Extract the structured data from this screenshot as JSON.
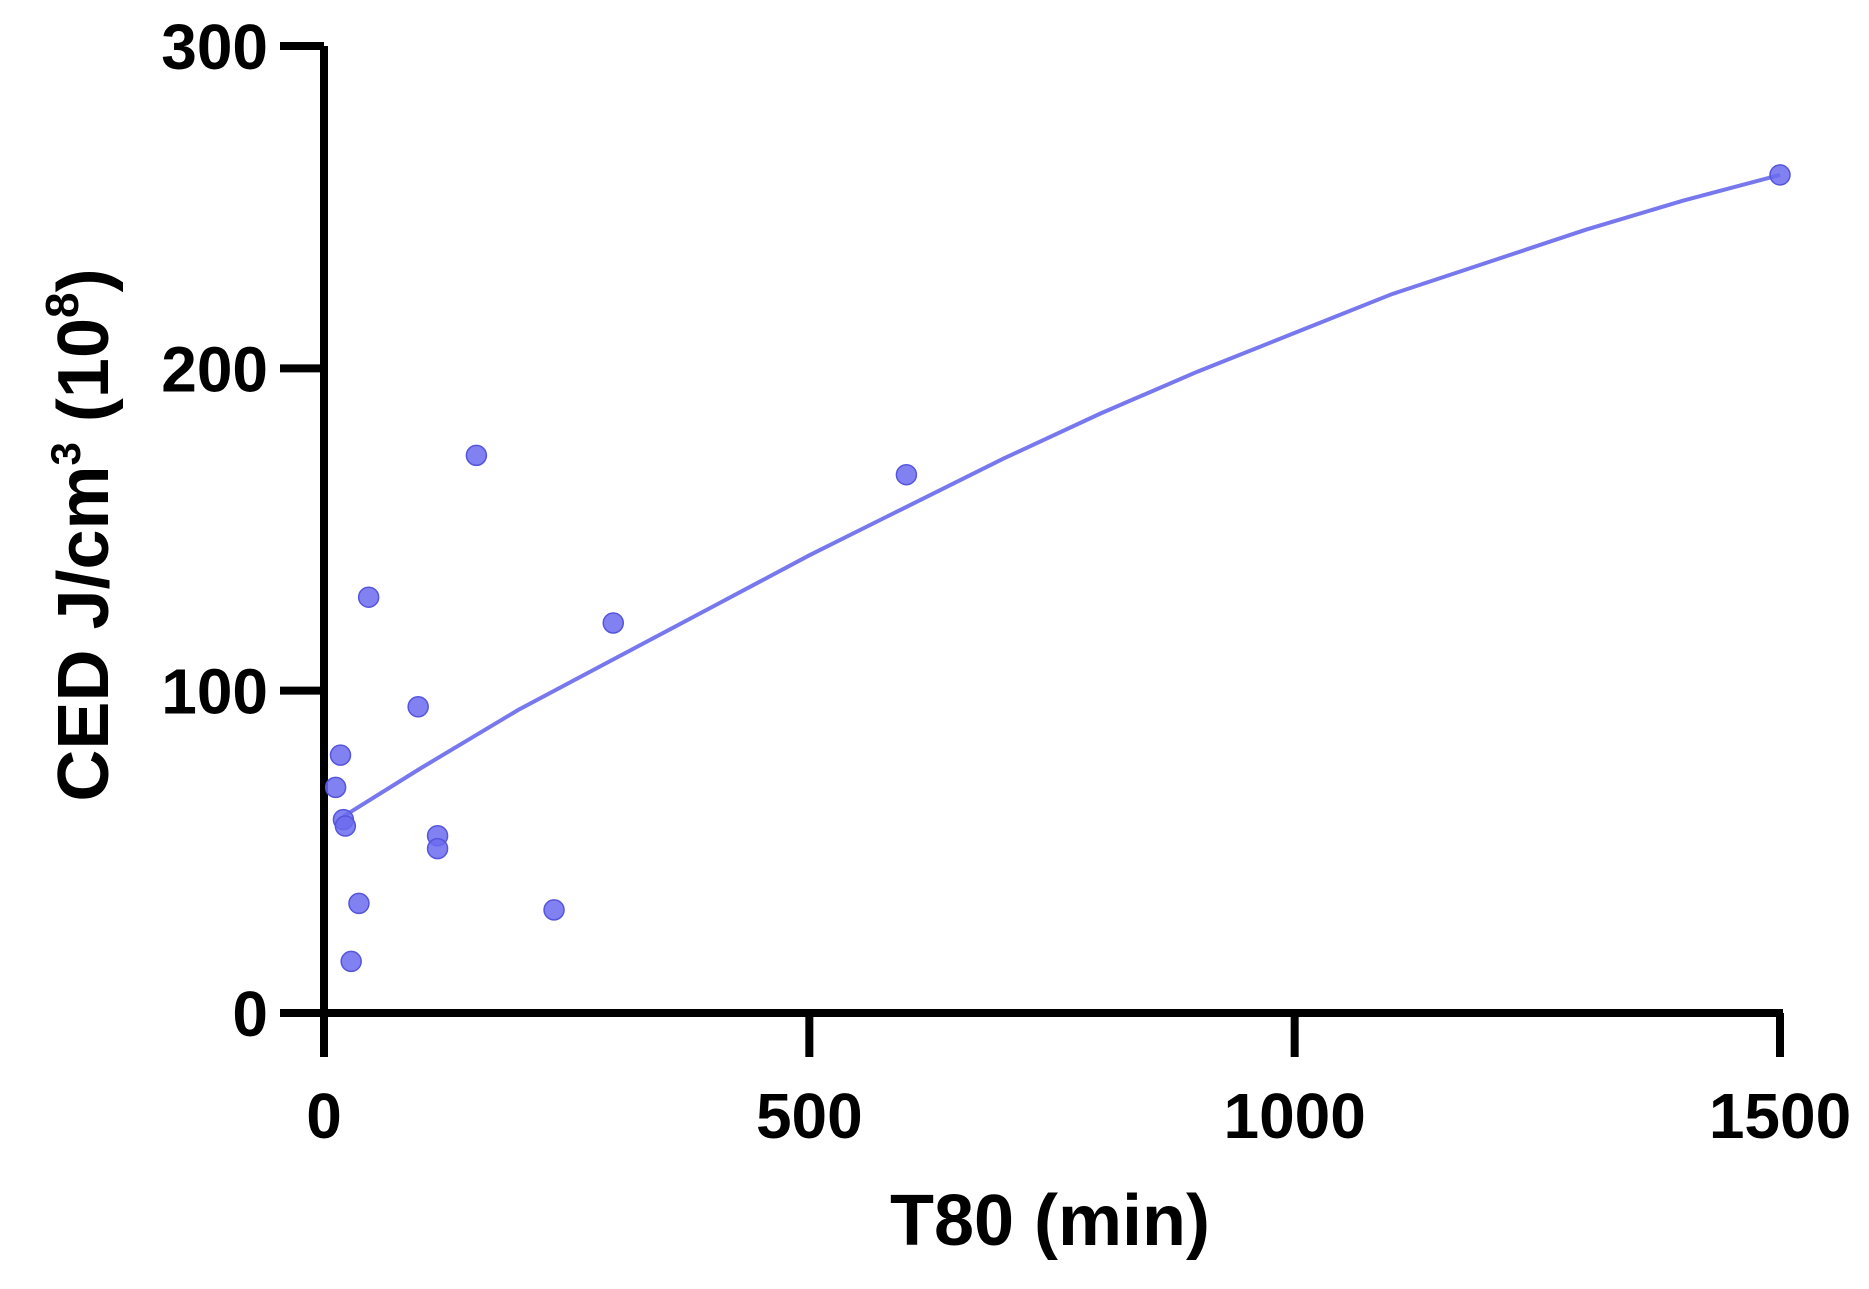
{
  "chart_data": {
    "type": "scatter",
    "xlabel": "T80 (min)",
    "ylabel": {
      "main": "CED J/cm",
      "main_sup": "3",
      "unit_open": " (10",
      "unit_sup": "8",
      "unit_close": ")"
    },
    "xlim": [
      0,
      1500
    ],
    "ylim": [
      0,
      300
    ],
    "x_ticks": [
      0,
      500,
      1000,
      1500
    ],
    "y_ticks": [
      0,
      100,
      200,
      300
    ],
    "grid": false,
    "legend": "none",
    "colors": {
      "points": "#6b6bee",
      "fit_line": "#7878ee",
      "axes": "#000000"
    },
    "series": [
      {
        "points": [
          {
            "x": 12,
            "y": 70
          },
          {
            "x": 17,
            "y": 80
          },
          {
            "x": 20,
            "y": 60
          },
          {
            "x": 22,
            "y": 58
          },
          {
            "x": 28,
            "y": 16
          },
          {
            "x": 36,
            "y": 34
          },
          {
            "x": 46,
            "y": 129
          },
          {
            "x": 97,
            "y": 95
          },
          {
            "x": 117,
            "y": 55
          },
          {
            "x": 117,
            "y": 51
          },
          {
            "x": 157,
            "y": 173
          },
          {
            "x": 237,
            "y": 32
          },
          {
            "x": 298,
            "y": 121
          },
          {
            "x": 600,
            "y": 167
          },
          {
            "x": 1500,
            "y": 260
          }
        ]
      }
    ],
    "fit_line": {
      "x": [
        20,
        100,
        200,
        300,
        400,
        500,
        600,
        700,
        800,
        900,
        1000,
        1100,
        1200,
        1300,
        1400,
        1500
      ],
      "y": [
        61,
        76,
        94,
        110,
        126,
        142,
        157,
        172,
        186,
        199,
        211,
        223,
        233,
        243,
        252,
        260
      ]
    }
  }
}
